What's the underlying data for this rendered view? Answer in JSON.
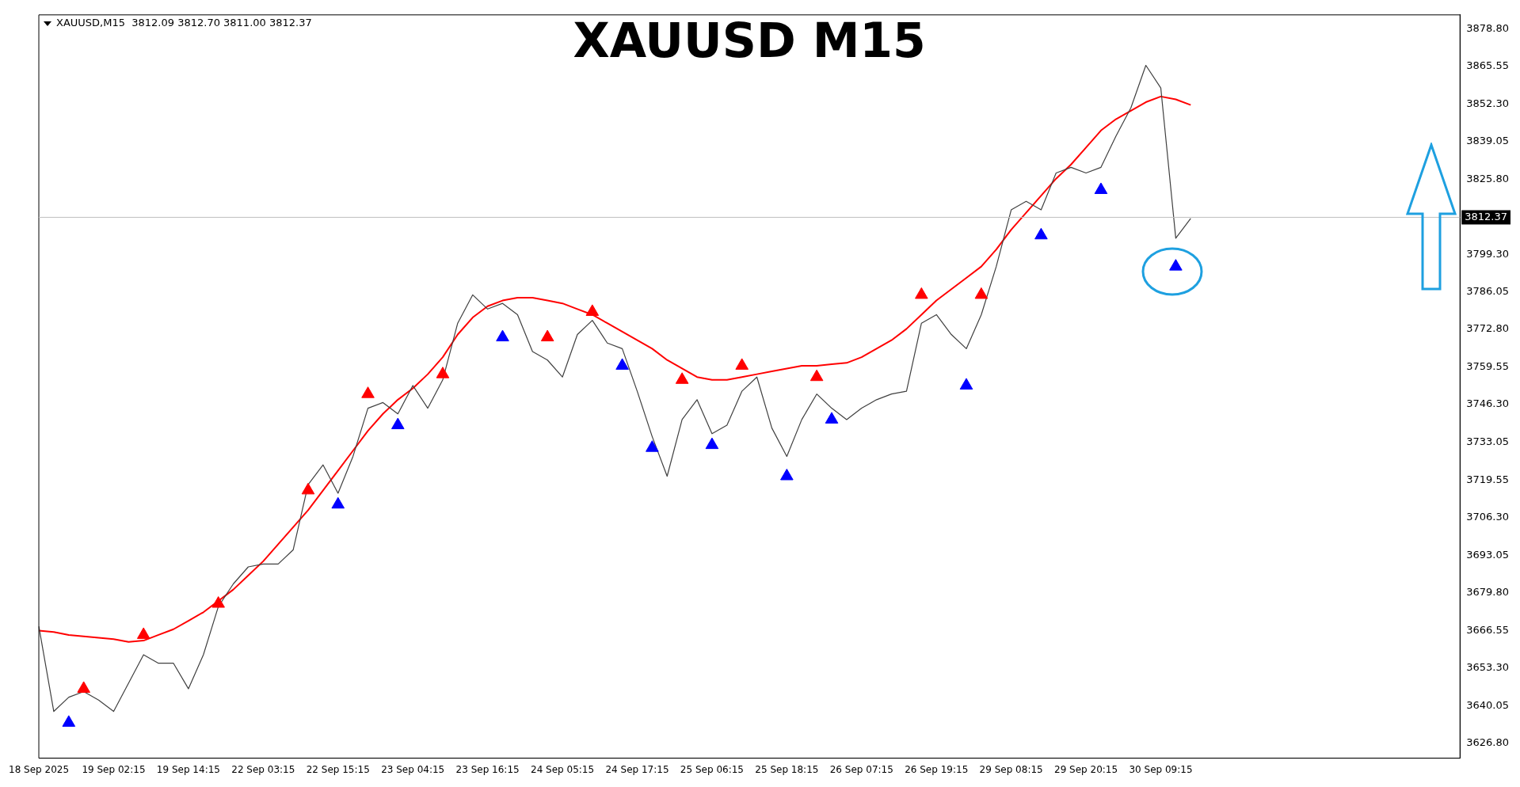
{
  "chart_data": {
    "type": "line",
    "title": "XAUUSD M15",
    "annotations": [
      "XAUUSD,M15  3812.09 3812.70 3811.00 3812.37"
    ],
    "categories": [
      "18 Sep 2025",
      null,
      null,
      null,
      null,
      "19 Sep 02:15",
      null,
      null,
      null,
      null,
      "19 Sep 14:15",
      null,
      null,
      null,
      null,
      "22 Sep 03:15",
      null,
      null,
      null,
      null,
      "22 Sep 15:15",
      null,
      null,
      null,
      null,
      "23 Sep 04:15",
      null,
      null,
      null,
      null,
      "23 Sep 16:15",
      null,
      null,
      null,
      null,
      "24 Sep 05:15",
      null,
      null,
      null,
      null,
      "24 Sep 17:15",
      null,
      null,
      null,
      null,
      "25 Sep 06:15",
      null,
      null,
      null,
      null,
      "25 Sep 18:15",
      null,
      null,
      null,
      null,
      "26 Sep 07:15",
      null,
      null,
      null,
      null,
      "26 Sep 19:15",
      null,
      null,
      null,
      null,
      "29 Sep 08:15",
      null,
      null,
      null,
      null,
      "29 Sep 20:15",
      null,
      null,
      null,
      null,
      "30 Sep 09:15",
      null,
      null,
      null,
      null,
      null,
      null,
      null,
      null,
      null,
      null,
      null,
      null,
      null,
      null,
      null,
      null,
      null,
      null,
      null,
      null
    ],
    "series": [
      {
        "type": "line",
        "color": "#404040",
        "marker": "none",
        "values": [
          3668,
          3638,
          3643,
          3645,
          3642,
          3638,
          3648,
          3658,
          3655,
          3655,
          3646,
          3658,
          3675,
          3683,
          3689,
          3690,
          3690,
          3695,
          3718,
          3725,
          3715,
          3728,
          3745,
          3747,
          3743,
          3753,
          3745,
          3755,
          3775,
          3785,
          3780,
          3782,
          3778,
          3765,
          3762,
          3756,
          3771,
          3776,
          3768,
          3766,
          3751,
          3735,
          3721,
          3741,
          3748,
          3736,
          3739,
          3751,
          3756,
          3738,
          3728,
          3741,
          3750,
          3745,
          3741,
          3745,
          3748,
          3750,
          3751,
          3775,
          3778,
          3771,
          3766,
          3778,
          3795,
          3815,
          3818,
          3815,
          3828,
          3830,
          3828,
          3830,
          3841,
          3851,
          3866,
          3858,
          3805,
          3812,
          null,
          null,
          null,
          null,
          null,
          null,
          null,
          null,
          null,
          null,
          null,
          null,
          null,
          null,
          null,
          null,
          null,
          null
        ]
      },
      {
        "type": "line",
        "color": "#ff0000",
        "marker": "none",
        "values": [
          3666.5,
          3666,
          3665,
          3664.5,
          3664,
          3663.5,
          3662.5,
          3663,
          3665,
          3667,
          3670,
          3673,
          3677,
          3681,
          3686,
          3691,
          3697,
          3703,
          3709,
          3716,
          3723,
          3730,
          3737,
          3743,
          3748,
          3752,
          3757,
          3763,
          3771,
          3777,
          3781,
          3783,
          3784,
          3784,
          3783,
          3782,
          3780,
          3778,
          3775,
          3772,
          3769,
          3766,
          3762,
          3759,
          3756,
          3755,
          3755,
          3756,
          3757,
          3758,
          3759,
          3760,
          3760,
          3760.5,
          3761,
          3763,
          3766,
          3769,
          3773,
          3778,
          3783,
          3787,
          3791,
          3795,
          3801,
          3808,
          3814,
          3820,
          3826,
          3831,
          3837,
          3843,
          3847,
          3850,
          3853,
          3855,
          3854,
          3852,
          null,
          null,
          null,
          null,
          null,
          null,
          null,
          null,
          null,
          null,
          null,
          null,
          null,
          null,
          null,
          null,
          null,
          null
        ]
      },
      {
        "type": "scatter",
        "color": "#0000ff",
        "marker": "triangle",
        "values": [
          null,
          null,
          3634,
          null,
          null,
          null,
          null,
          null,
          null,
          null,
          null,
          null,
          null,
          null,
          null,
          null,
          null,
          null,
          null,
          null,
          3711,
          null,
          null,
          null,
          3739,
          null,
          null,
          null,
          null,
          null,
          null,
          3770,
          null,
          null,
          null,
          null,
          null,
          null,
          null,
          3760,
          null,
          3731,
          null,
          null,
          null,
          3732,
          null,
          null,
          null,
          null,
          3721,
          null,
          null,
          3741,
          null,
          null,
          null,
          null,
          null,
          null,
          null,
          null,
          3753,
          null,
          null,
          null,
          null,
          3806,
          null,
          null,
          null,
          3822,
          null,
          null,
          null,
          null,
          3795,
          null,
          null,
          null,
          null,
          null,
          null,
          null,
          null,
          null,
          null,
          null,
          null,
          null,
          null,
          null,
          null,
          null,
          null,
          null
        ]
      },
      {
        "type": "scatter",
        "color": "#ff0000",
        "marker": "triangle",
        "values": [
          null,
          null,
          null,
          3646,
          null,
          null,
          null,
          3665,
          null,
          null,
          null,
          null,
          3676,
          null,
          null,
          null,
          null,
          null,
          3716,
          null,
          null,
          null,
          3750,
          null,
          null,
          null,
          null,
          3757,
          null,
          null,
          null,
          null,
          null,
          null,
          3770,
          null,
          null,
          3779,
          null,
          null,
          null,
          null,
          null,
          3755,
          null,
          null,
          null,
          3760,
          null,
          null,
          null,
          null,
          3756,
          null,
          null,
          null,
          null,
          null,
          null,
          3785,
          null,
          null,
          null,
          3785,
          null,
          null,
          null,
          null,
          null,
          null,
          null,
          null,
          null,
          null,
          null,
          null,
          null,
          null,
          null,
          null,
          null,
          null,
          null,
          null,
          null,
          null,
          null,
          null,
          null,
          null,
          null,
          null,
          null,
          null,
          null,
          null
        ]
      }
    ],
    "ylim": [
      3621.5,
      3883.8
    ],
    "yticks": [
      {
        "value": 3878.8,
        "label": "3878.80"
      },
      {
        "value": 3865.55,
        "label": "3865.55"
      },
      {
        "value": 3852.3,
        "label": "3852.30"
      },
      {
        "value": 3839.05,
        "label": "3839.05"
      },
      {
        "value": 3825.8,
        "label": "3825.80"
      },
      {
        "value": 3799.3,
        "label": "3799.30"
      },
      {
        "value": 3786.05,
        "label": "3786.05"
      },
      {
        "value": 3772.8,
        "label": "3772.80"
      },
      {
        "value": 3759.55,
        "label": "3759.55"
      },
      {
        "value": 3746.3,
        "label": "3746.30"
      },
      {
        "value": 3733.05,
        "label": "3733.05"
      },
      {
        "value": 3719.55,
        "label": "3719.55"
      },
      {
        "value": 3706.3,
        "label": "3706.30"
      },
      {
        "value": 3693.05,
        "label": "3693.05"
      },
      {
        "value": 3679.8,
        "label": "3679.80"
      },
      {
        "value": 3666.55,
        "label": "3666.55"
      },
      {
        "value": 3653.3,
        "label": "3653.30"
      },
      {
        "value": 3640.05,
        "label": "3640.05"
      },
      {
        "value": 3626.8,
        "label": "3626.80"
      }
    ],
    "ref_lines": [
      {
        "axis": "y",
        "value": 3812.37,
        "label": "3812.37",
        "color": "#c0c0c0"
      }
    ],
    "grid": false,
    "legend": false
  }
}
